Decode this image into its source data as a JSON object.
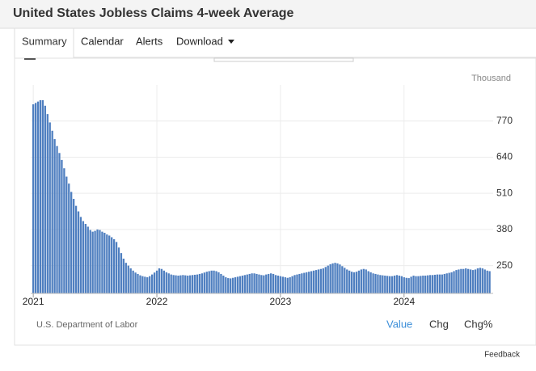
{
  "header": {
    "title": "United States Jobless Claims 4-week Average"
  },
  "tabs": [
    "Summary",
    "Calendar",
    "Alerts",
    "Download"
  ],
  "footer": {
    "buttons": [
      "Value",
      "Chg",
      "Chg%"
    ],
    "feedback": "Feedback"
  },
  "chart_data": {
    "type": "bar",
    "unit": "Thousand",
    "source": "U.S. Department of Labor",
    "color": "#4f7fc0",
    "grid": true,
    "ylim": [
      150,
      900
    ],
    "yticks": [
      250,
      380,
      510,
      640,
      770
    ],
    "categories": [
      "2021",
      null,
      null,
      null,
      null,
      null,
      null,
      null,
      null,
      null,
      null,
      null,
      null,
      null,
      null,
      null,
      null,
      null,
      null,
      null,
      null,
      null,
      null,
      null,
      null,
      null,
      null,
      null,
      null,
      null,
      null,
      null,
      null,
      null,
      null,
      null,
      null,
      null,
      null,
      null,
      null,
      null,
      null,
      null,
      null,
      null,
      null,
      null,
      null,
      null,
      null,
      null,
      "2022",
      null,
      null,
      null,
      null,
      null,
      null,
      null,
      null,
      null,
      null,
      null,
      null,
      null,
      null,
      null,
      null,
      null,
      null,
      null,
      null,
      null,
      null,
      null,
      null,
      null,
      null,
      null,
      null,
      null,
      null,
      null,
      null,
      null,
      null,
      null,
      null,
      null,
      null,
      null,
      null,
      null,
      null,
      null,
      null,
      null,
      null,
      null,
      null,
      null,
      null,
      null,
      "2023",
      null,
      null,
      null,
      null,
      null,
      null,
      null,
      null,
      null,
      null,
      null,
      null,
      null,
      null,
      null,
      null,
      null,
      null,
      null,
      null,
      null,
      null,
      null,
      null,
      null,
      null,
      null,
      null,
      null,
      null,
      null,
      null,
      null,
      null,
      null,
      null,
      null,
      null,
      null,
      null,
      null,
      null,
      null,
      null,
      null,
      null,
      null,
      null,
      null,
      null,
      null,
      "2024",
      null,
      null,
      null,
      null,
      null,
      null,
      null,
      null,
      null,
      null,
      null,
      null,
      null,
      null,
      null,
      null,
      null,
      null,
      null,
      null,
      null,
      null,
      null,
      null,
      null,
      null,
      null,
      null,
      null,
      null,
      null,
      null,
      null,
      null,
      null,
      null
    ],
    "values": [
      830,
      835,
      840,
      845,
      845,
      825,
      795,
      765,
      735,
      705,
      680,
      655,
      630,
      600,
      570,
      545,
      515,
      490,
      465,
      445,
      425,
      410,
      400,
      390,
      378,
      372,
      375,
      380,
      378,
      372,
      368,
      362,
      358,
      352,
      345,
      335,
      315,
      295,
      275,
      260,
      250,
      240,
      232,
      225,
      220,
      215,
      212,
      210,
      208,
      212,
      218,
      225,
      232,
      240,
      238,
      232,
      226,
      222,
      218,
      216,
      215,
      214,
      215,
      216,
      215,
      214,
      215,
      216,
      217,
      218,
      220,
      222,
      225,
      228,
      230,
      232,
      232,
      230,
      226,
      220,
      214,
      208,
      205,
      204,
      206,
      208,
      210,
      212,
      214,
      216,
      218,
      220,
      222,
      222,
      220,
      218,
      216,
      215,
      218,
      220,
      222,
      220,
      216,
      214,
      212,
      210,
      208,
      206,
      208,
      212,
      216,
      218,
      220,
      222,
      224,
      226,
      228,
      230,
      232,
      234,
      236,
      238,
      240,
      245,
      250,
      255,
      258,
      260,
      258,
      254,
      248,
      242,
      236,
      232,
      228,
      226,
      228,
      232,
      236,
      238,
      236,
      230,
      226,
      222,
      220,
      218,
      216,
      215,
      214,
      213,
      212,
      212,
      214,
      216,
      214,
      212,
      208,
      206,
      205,
      210,
      214,
      212,
      212,
      213,
      214,
      214,
      215,
      216,
      216,
      217,
      218,
      218,
      218,
      220,
      222,
      224,
      226,
      230,
      234,
      236,
      238,
      238,
      240,
      238,
      236,
      234,
      236,
      240,
      242,
      240,
      236,
      232,
      230
    ]
  }
}
